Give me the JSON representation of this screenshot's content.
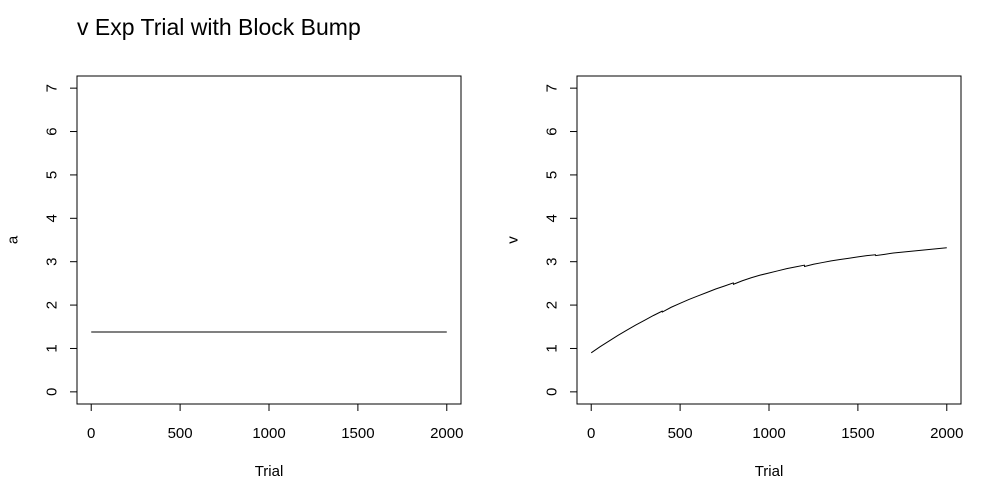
{
  "page_title": "v Exp Trial with Block Bump",
  "chart_data": [
    {
      "type": "line",
      "xlabel": "Trial",
      "ylabel": "a",
      "xlim": [
        -80,
        2080
      ],
      "ylim": [
        -0.28,
        7.28
      ],
      "xticks": [
        0,
        500,
        1000,
        1500,
        2000
      ],
      "yticks": [
        0,
        1,
        2,
        3,
        4,
        5,
        6,
        7
      ],
      "grid": false,
      "series": [
        {
          "x": [
            0,
            2000
          ],
          "y": [
            1.38,
            1.38
          ]
        }
      ]
    },
    {
      "type": "line",
      "xlabel": "Trial",
      "ylabel": "v",
      "xlim": [
        -80,
        2080
      ],
      "ylim": [
        -0.28,
        7.28
      ],
      "xticks": [
        0,
        500,
        1000,
        1500,
        2000
      ],
      "yticks": [
        0,
        1,
        2,
        3,
        4,
        5,
        6,
        7
      ],
      "grid": false,
      "series": [
        {
          "x": [
            0,
            50,
            100,
            150,
            200,
            250,
            300,
            350,
            399,
            400,
            450,
            500,
            550,
            600,
            650,
            700,
            750,
            799,
            800,
            850,
            900,
            950,
            1000,
            1050,
            1100,
            1150,
            1199,
            1200,
            1250,
            1300,
            1350,
            1400,
            1450,
            1500,
            1550,
            1599,
            1600,
            1650,
            1700,
            1750,
            1800,
            1850,
            1900,
            1950,
            2000
          ],
          "y": [
            0.9,
            1.04,
            1.17,
            1.3,
            1.42,
            1.54,
            1.65,
            1.76,
            1.86,
            1.84,
            1.95,
            2.04,
            2.13,
            2.21,
            2.29,
            2.37,
            2.44,
            2.51,
            2.48,
            2.56,
            2.63,
            2.69,
            2.74,
            2.79,
            2.84,
            2.88,
            2.92,
            2.89,
            2.94,
            2.98,
            3.02,
            3.05,
            3.08,
            3.11,
            3.14,
            3.16,
            3.14,
            3.17,
            3.2,
            3.22,
            3.24,
            3.26,
            3.28,
            3.3,
            3.32
          ]
        }
      ]
    }
  ]
}
